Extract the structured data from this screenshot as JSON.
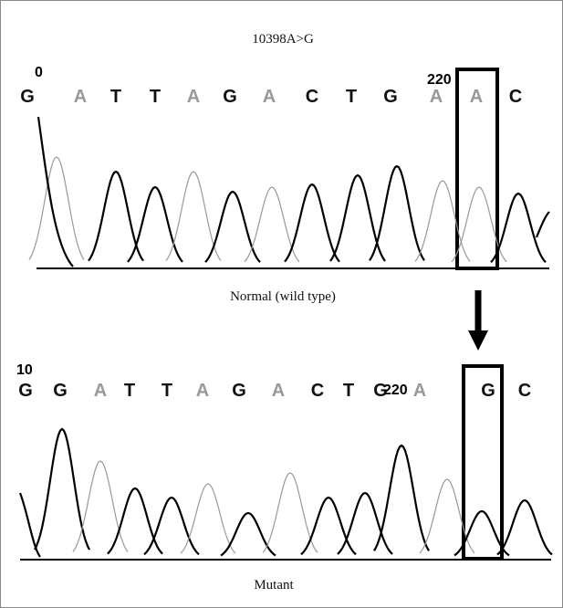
{
  "title": "10398A>G",
  "panels": [
    {
      "position_labels": [
        "0",
        "220"
      ],
      "bases": [
        "G",
        "A",
        "T",
        "T",
        "A",
        "G",
        "A",
        "C",
        "T",
        "G",
        "A",
        "A",
        "C"
      ],
      "caption": "Normal (wild type)"
    },
    {
      "position_labels": [
        "10",
        "220"
      ],
      "bases": [
        "G",
        "G",
        "A",
        "T",
        "T",
        "A",
        "G",
        "A",
        "C",
        "T",
        "G",
        "A",
        "G",
        "C"
      ],
      "caption": "Mutant"
    }
  ]
}
